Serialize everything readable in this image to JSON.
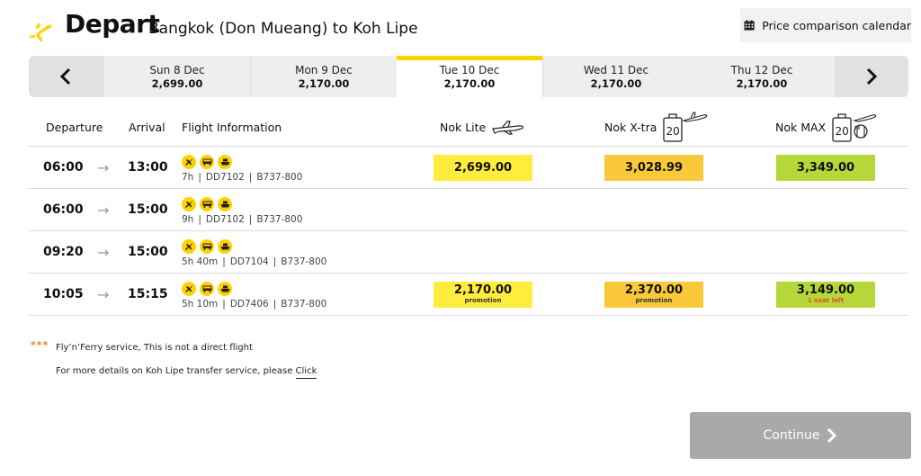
{
  "header": {
    "title": "Depart",
    "route": "Bangkok (Don Mueang) to Koh Lipe",
    "calendar_label": "Price comparison calendar"
  },
  "dates": [
    {
      "label": "Sun 8 Dec",
      "price": "2,699.00",
      "active": false
    },
    {
      "label": "Mon 9 Dec",
      "price": "2,170.00",
      "active": false
    },
    {
      "label": "Tue 10 Dec",
      "price": "2,170.00",
      "active": true
    },
    {
      "label": "Wed 11 Dec",
      "price": "2,170.00",
      "active": false
    },
    {
      "label": "Thu 12 Dec",
      "price": "2,170.00",
      "active": false
    }
  ],
  "columns": {
    "departure": "Departure",
    "arrival": "Arrival",
    "info": "Flight Information",
    "lite": "Nok Lite",
    "xtra": "Nok X-tra",
    "max": "Nok MAX",
    "bag_kg": "20"
  },
  "flights": [
    {
      "dep": "06:00",
      "arr": "13:00",
      "duration": "7h",
      "flight_no": "DD7102",
      "aircraft": "B737-800",
      "lite": "2,699.00",
      "lite_note": "",
      "xtra": "3,028.99",
      "xtra_note": "",
      "max": "3,349.00",
      "max_note": ""
    },
    {
      "dep": "06:00",
      "arr": "15:00",
      "duration": "9h",
      "flight_no": "DD7102",
      "aircraft": "B737-800",
      "lite": "",
      "lite_note": "",
      "xtra": "",
      "xtra_note": "",
      "max": "",
      "max_note": ""
    },
    {
      "dep": "09:20",
      "arr": "15:00",
      "duration": "5h 40m",
      "flight_no": "DD7104",
      "aircraft": "B737-800",
      "lite": "",
      "lite_note": "",
      "xtra": "",
      "xtra_note": "",
      "max": "",
      "max_note": ""
    },
    {
      "dep": "10:05",
      "arr": "15:15",
      "duration": "5h 10m",
      "flight_no": "DD7406",
      "aircraft": "B737-800",
      "lite": "2,170.00",
      "lite_note": "promotion",
      "xtra": "2,370.00",
      "xtra_note": "promotion",
      "max": "3,149.00",
      "max_note": "1 seat left"
    }
  ],
  "footnote": {
    "stars": "***",
    "line1": "Fly’n’Ferry service, This is not a direct flight",
    "line2": "For more details on Koh Lipe transfer service, please",
    "link": "Click"
  },
  "continue_label": "Continue",
  "colors": {
    "brand_yellow": "#ffd200",
    "lite": "#ffec3d",
    "xtra": "#f9c93a",
    "max": "#b5d73a",
    "continue_disabled": "#a9a9a9",
    "seat_alert": "#e0502a"
  }
}
